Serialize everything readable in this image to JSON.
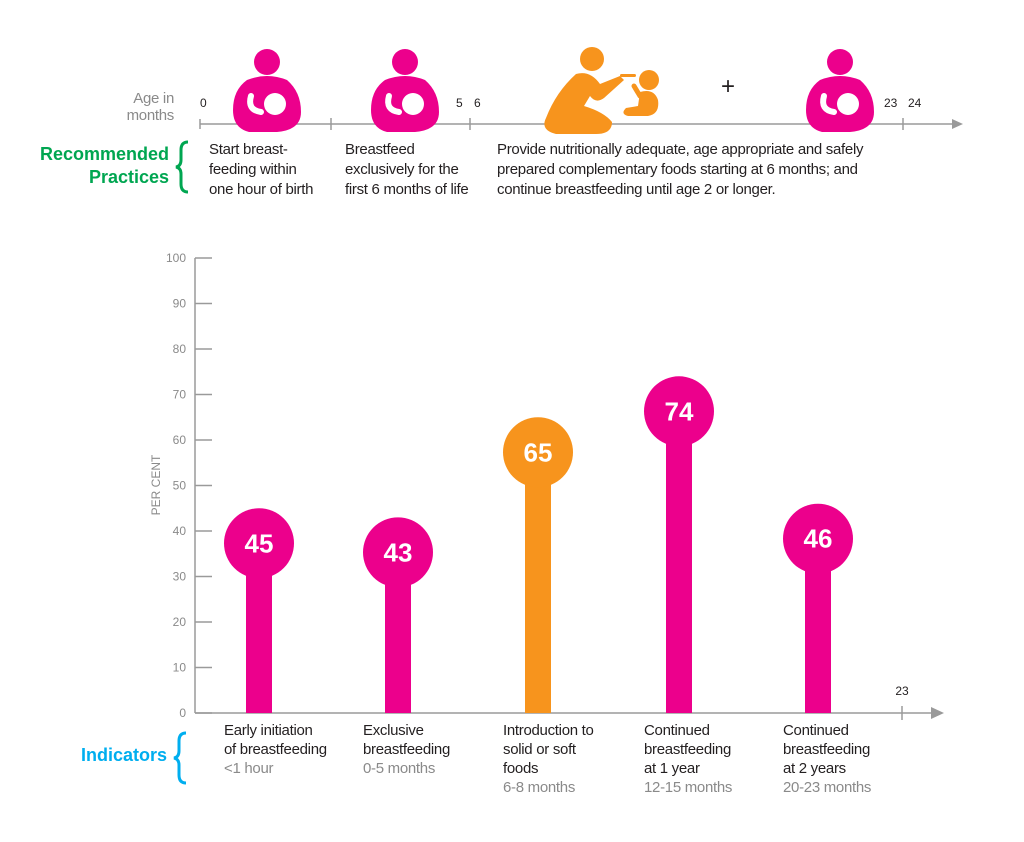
{
  "colors": {
    "breastfeeding": "#EC008C",
    "complementary": "#F7941D",
    "practices": "#00A651",
    "indicators": "#00AEEF"
  },
  "timeline": {
    "age_label": [
      "Age in",
      "months"
    ],
    "ticks": [
      "0",
      "5",
      "6",
      "23",
      "24"
    ],
    "plus": "+",
    "practices_label": [
      "Recommended",
      "Practices"
    ],
    "practices": [
      {
        "lines": [
          "Start breast-",
          "feeding within",
          "one hour of birth"
        ],
        "icon": "breastfeeding-mother-icon"
      },
      {
        "lines": [
          "Breastfeed",
          "exclusively for the",
          "first 6 months of life"
        ],
        "icon": "breastfeeding-mother-icon"
      },
      {
        "lines": [
          "Provide nutritionally adequate, age appropriate and safely",
          "prepared complementary foods starting at 6 months; and",
          "continue breastfeeding until age 2 or longer."
        ],
        "icon": "feeding-child-icon"
      }
    ]
  },
  "chart_data": {
    "type": "bar",
    "ylabel": "PER CENT",
    "ylim": [
      0,
      100
    ],
    "yticks": [
      "0",
      "10",
      "20",
      "30",
      "40",
      "50",
      "60",
      "70",
      "80",
      "90",
      "100"
    ],
    "x_axis_end_label": "23",
    "grid": false,
    "indicators_label": "Indicators",
    "categories": [
      {
        "lines": [
          "Early initiation",
          "of breastfeeding"
        ],
        "age": "<1 hour"
      },
      {
        "lines": [
          "Exclusive",
          "breastfeeding"
        ],
        "age": "0-5 months"
      },
      {
        "lines": [
          "Introduction to",
          "solid or soft",
          "foods"
        ],
        "age": "6-8 months"
      },
      {
        "lines": [
          "Continued",
          "breastfeeding",
          "at 1 year"
        ],
        "age": "12-15 months"
      },
      {
        "lines": [
          "Continued",
          "breastfeeding",
          "at 2 years"
        ],
        "age": "20-23 months"
      }
    ],
    "values": [
      45,
      43,
      65,
      74,
      46
    ],
    "value_labels": [
      "45",
      "43",
      "65",
      "74",
      "46"
    ],
    "bar_colors": [
      "#EC008C",
      "#EC008C",
      "#F7941D",
      "#EC008C",
      "#EC008C"
    ]
  }
}
